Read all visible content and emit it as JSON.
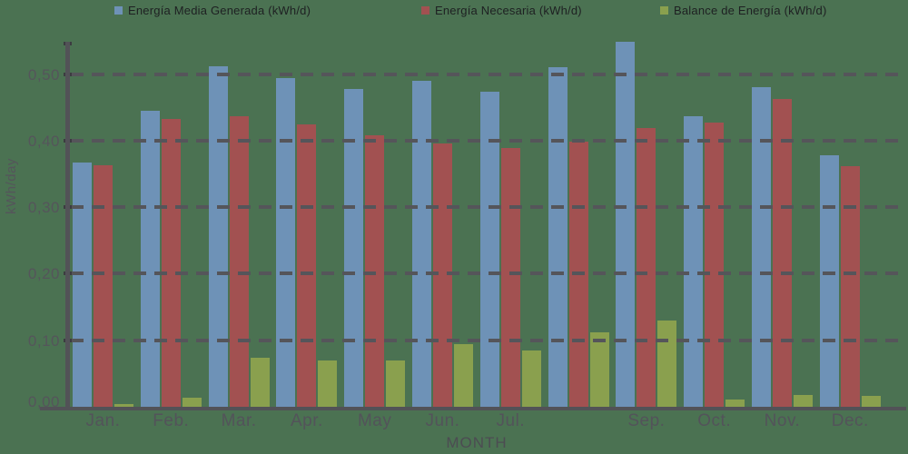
{
  "page": {
    "background_color": "#4b7252"
  },
  "legend": {
    "position": "top",
    "items": [
      {
        "label": "Energía Media Generada (kWh/d)",
        "color": "#6e92b7"
      },
      {
        "label": "Energía Necesaria (kWh/d)",
        "color": "#a25151"
      },
      {
        "label": "Balance de Energía (kWh/d)",
        "color": "#8aa04e"
      }
    ]
  },
  "chart_data": {
    "type": "bar",
    "title": "",
    "xlabel": "MONTH",
    "ylabel": "kWh/day",
    "ylim": [
      0,
      0.55
    ],
    "grid": "dashed horizontal lines every 0.10, drawn on top of bars",
    "legend_position": "top",
    "decimal_separator": ",",
    "yticks": [
      {
        "value": 0.0,
        "label": "0,00"
      },
      {
        "value": 0.1,
        "label": "0,10"
      },
      {
        "value": 0.2,
        "label": "0,20"
      },
      {
        "value": 0.3,
        "label": "0,30"
      },
      {
        "value": 0.4,
        "label": "0,40"
      },
      {
        "value": 0.5,
        "label": "0,50"
      }
    ],
    "categories": [
      "Jan.",
      "Feb.",
      "Mar.",
      "Apr.",
      "May",
      "Jun.",
      "Jul.",
      "",
      "Sep.",
      "Oct.",
      "Nov.",
      "Dec."
    ],
    "series": [
      {
        "name": "Energía Media Generada (kWh/d)",
        "color": "#6e92b7",
        "values": [
          0.367,
          0.445,
          0.511,
          0.494,
          0.478,
          0.49,
          0.473,
          0.51,
          0.549,
          0.437,
          0.48,
          0.378
        ]
      },
      {
        "name": "Energía Necesaria (kWh/d)",
        "color": "#a25151",
        "values": [
          0.363,
          0.432,
          0.437,
          0.424,
          0.408,
          0.395,
          0.389,
          0.398,
          0.419,
          0.427,
          0.462,
          0.362
        ]
      },
      {
        "name": "Balance de Energía (kWh/d)",
        "color": "#8aa04e",
        "values": [
          0.004,
          0.013,
          0.074,
          0.07,
          0.07,
          0.094,
          0.084,
          0.112,
          0.13,
          0.011,
          0.018,
          0.016
        ]
      }
    ],
    "colors": {
      "background": "#4b7252",
      "axis": "#525257",
      "grid": "#55555a",
      "tick_text": "#55555b",
      "legend_text": "#1e2022"
    }
  }
}
